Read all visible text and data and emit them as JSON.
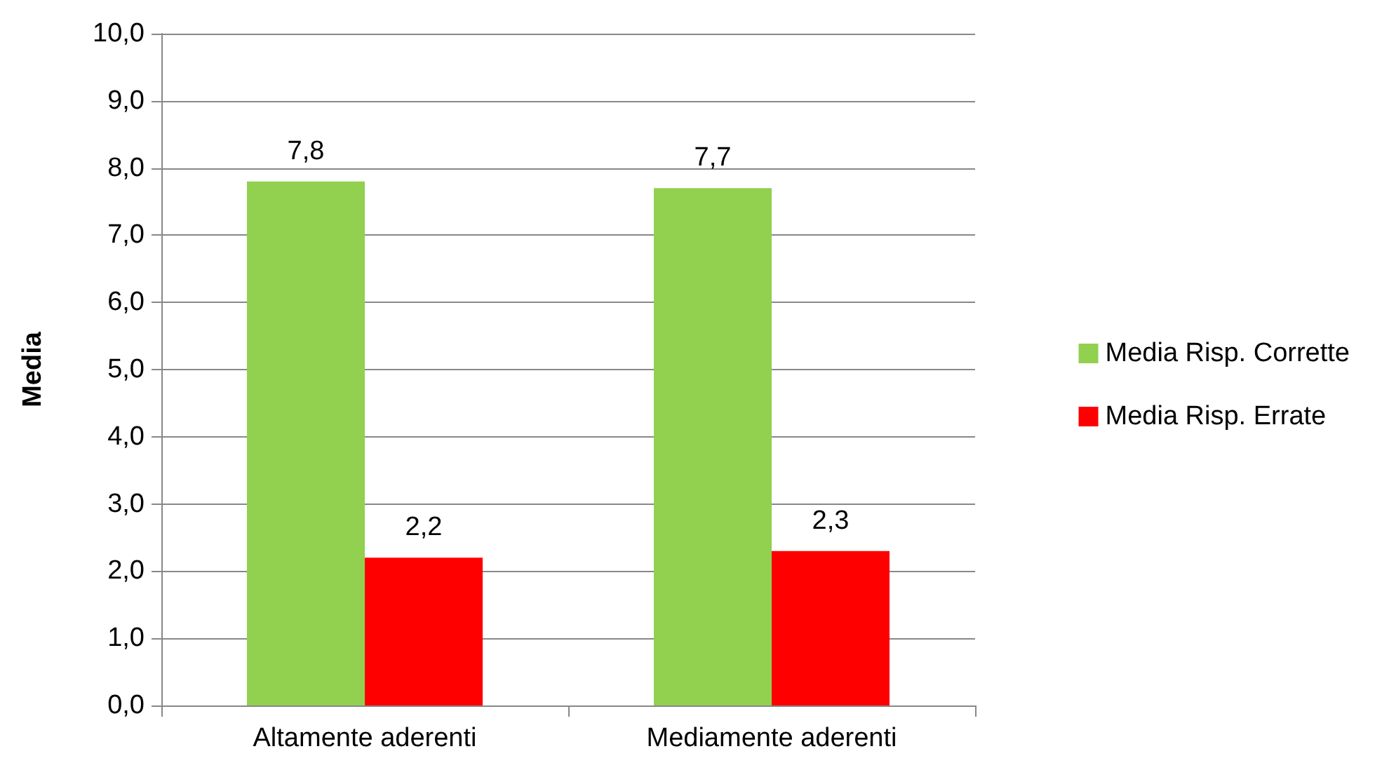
{
  "chart_data": {
    "type": "bar",
    "ylabel": "Media",
    "categories": [
      "Altamente aderenti",
      "Mediamente aderenti"
    ],
    "series": [
      {
        "name": "Media Risp. Corrette",
        "color": "#92d050",
        "values": [
          7.8,
          7.7
        ],
        "value_labels": [
          "7,8",
          "7,7"
        ]
      },
      {
        "name": "Media Risp. Errate",
        "color": "#ff0000",
        "values": [
          2.2,
          2.3
        ],
        "value_labels": [
          "2,2",
          "2,3"
        ]
      }
    ],
    "ylim": [
      0,
      10
    ],
    "yticks": [
      {
        "value": 0,
        "label": "0,0"
      },
      {
        "value": 1,
        "label": "1,0"
      },
      {
        "value": 2,
        "label": "2,0"
      },
      {
        "value": 3,
        "label": "3,0"
      },
      {
        "value": 4,
        "label": "4,0"
      },
      {
        "value": 5,
        "label": "5,0"
      },
      {
        "value": 6,
        "label": "6,0"
      },
      {
        "value": 7,
        "label": "7,0"
      },
      {
        "value": 8,
        "label": "8,0"
      },
      {
        "value": 9,
        "label": "9,0"
      },
      {
        "value": 10,
        "label": "10,0"
      }
    ],
    "grid": "y",
    "legend": "right"
  }
}
